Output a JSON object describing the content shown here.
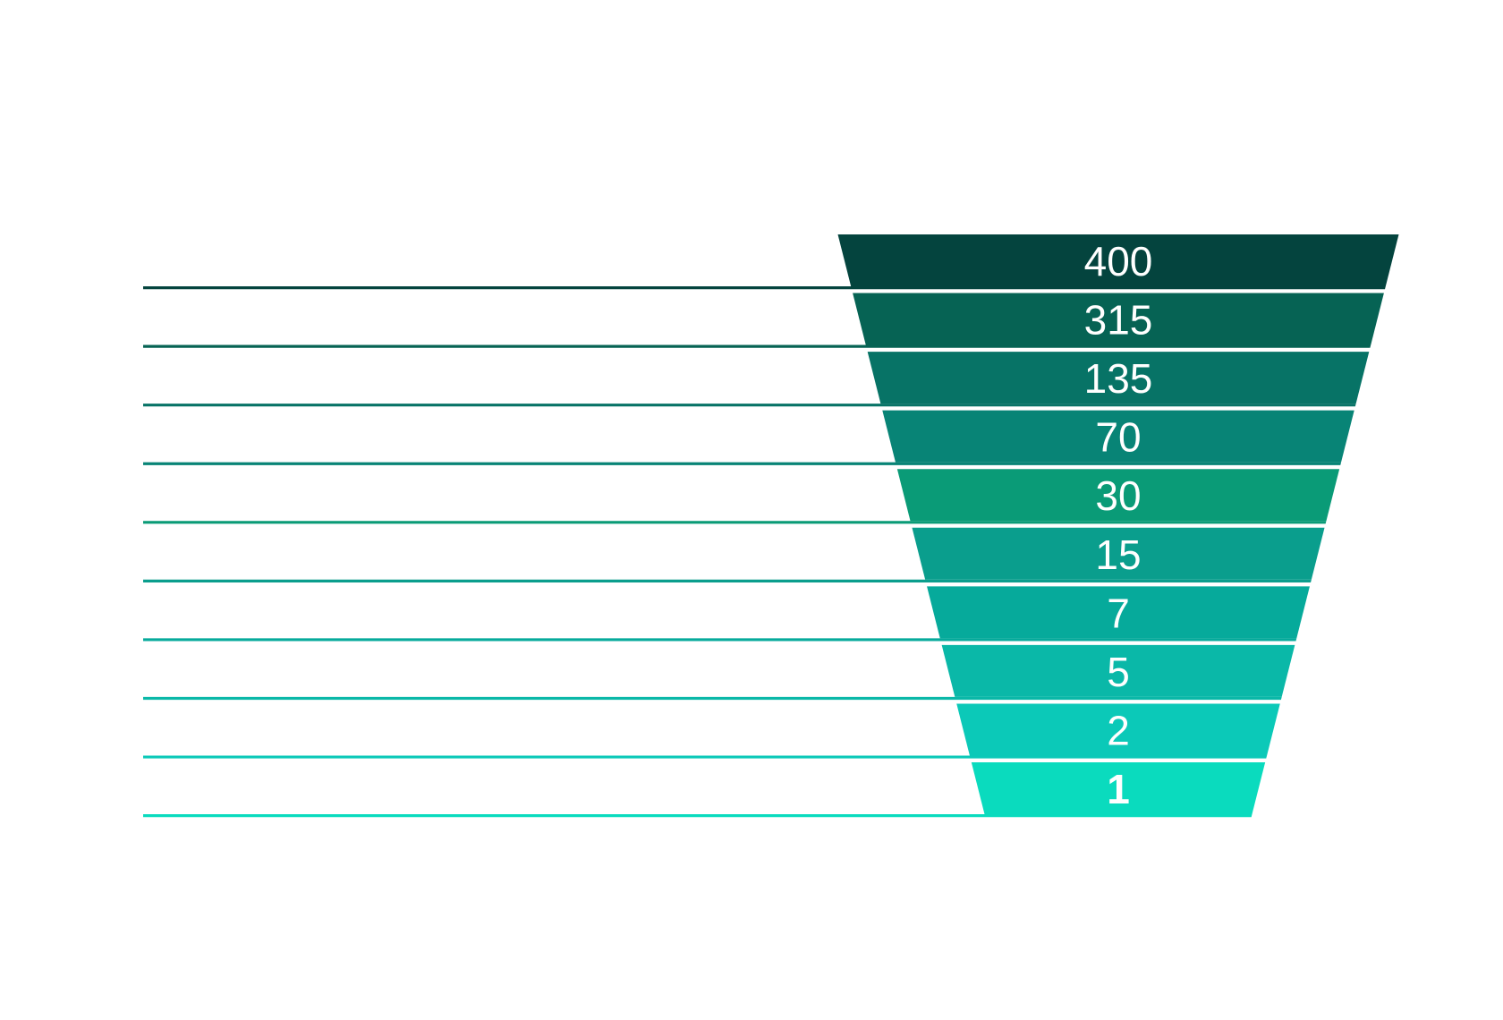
{
  "chart_data": {
    "type": "funnel",
    "values": [
      400,
      315,
      135,
      70,
      30,
      15,
      7,
      5,
      2,
      1
    ],
    "labels": [
      "400",
      "315",
      "135",
      "70",
      "30",
      "15",
      "7",
      "5",
      "2",
      "1"
    ],
    "segment_colors": [
      "#04443E",
      "#066354",
      "#077366",
      "#088476",
      "#0A9B77",
      "#0A9E8D",
      "#06AA9B",
      "#0AB8A8",
      "#0BC9B8",
      "#0ADBBE"
    ],
    "label_color": "#FFFFFF",
    "background_color": "#FFFFFF",
    "legend": "none",
    "title": "",
    "labels_position": "center",
    "last_label_bold": true,
    "left_guide_lines": true
  }
}
